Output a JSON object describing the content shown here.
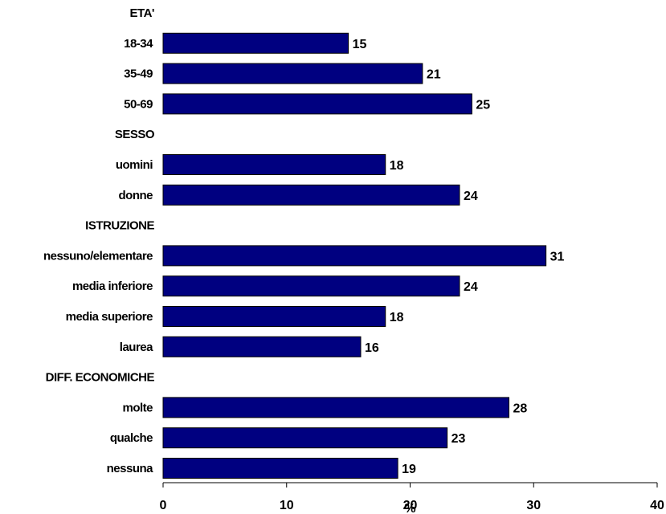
{
  "chart_data": {
    "type": "bar",
    "orientation": "horizontal",
    "xlabel": "%",
    "xlim": [
      0,
      40
    ],
    "xticks": [
      0,
      10,
      20,
      30,
      40
    ],
    "bar_color": "#000080",
    "rows": [
      {
        "label": "ETA'",
        "kind": "header"
      },
      {
        "label": "18-34",
        "kind": "bar",
        "value": 15
      },
      {
        "label": "35-49",
        "kind": "bar",
        "value": 21
      },
      {
        "label": "50-69",
        "kind": "bar",
        "value": 25
      },
      {
        "label": "SESSO",
        "kind": "header"
      },
      {
        "label": "uomini",
        "kind": "bar",
        "value": 18
      },
      {
        "label": "donne",
        "kind": "bar",
        "value": 24
      },
      {
        "label": "ISTRUZIONE",
        "kind": "header"
      },
      {
        "label": "nessuno/elementare",
        "kind": "bar",
        "value": 31
      },
      {
        "label": "media inferiore",
        "kind": "bar",
        "value": 24
      },
      {
        "label": "media superiore",
        "kind": "bar",
        "value": 18
      },
      {
        "label": "laurea",
        "kind": "bar",
        "value": 16
      },
      {
        "label": "DIFF. ECONOMICHE",
        "kind": "header"
      },
      {
        "label": "molte",
        "kind": "bar",
        "value": 28
      },
      {
        "label": "qualche",
        "kind": "bar",
        "value": 23
      },
      {
        "label": "nessuna",
        "kind": "bar",
        "value": 19
      }
    ]
  }
}
